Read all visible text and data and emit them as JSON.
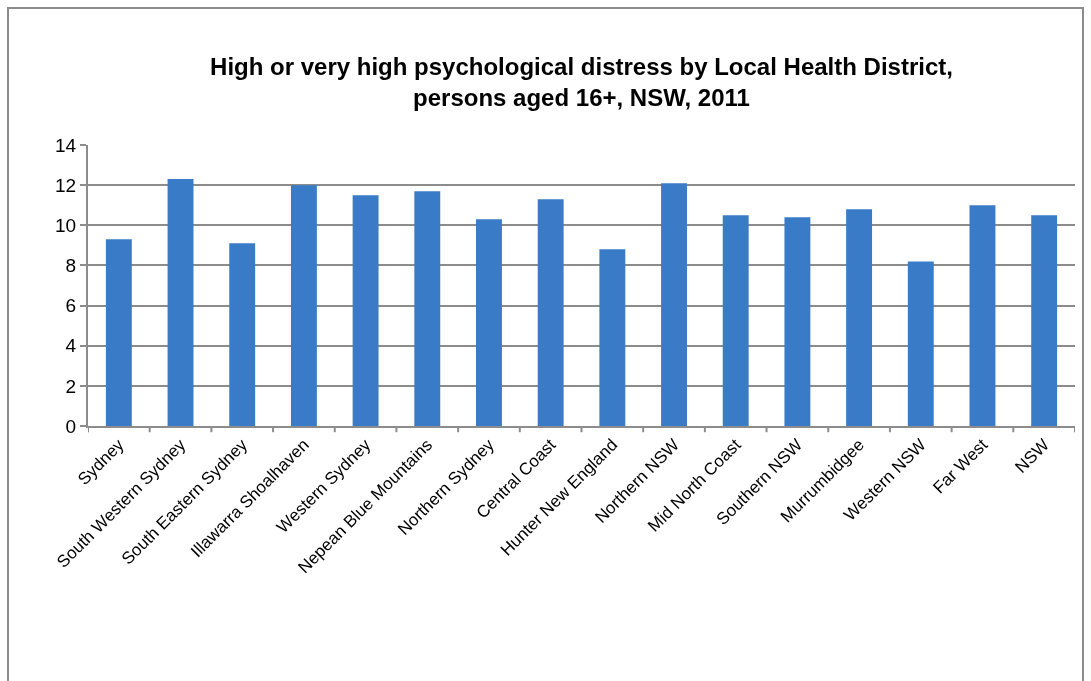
{
  "chart_data": {
    "type": "bar",
    "title": "High or very high psychological distress by Local Health District,\npersons aged 16+, NSW, 2011",
    "categories": [
      "Sydney",
      "South Western Sydney",
      "South Eastern Sydney",
      "Illawarra Shoalhaven",
      "Western Sydney",
      "Nepean Blue Mountains",
      "Northern Sydney",
      "Central Coast",
      "Hunter New England",
      "Northern NSW",
      "Mid North Coast",
      "Southern NSW",
      "Murrumbidgee",
      "Western NSW",
      "Far West",
      "NSW"
    ],
    "values": [
      9.3,
      12.3,
      9.1,
      12.0,
      11.5,
      11.7,
      10.3,
      11.3,
      8.8,
      12.1,
      10.5,
      10.4,
      10.8,
      8.2,
      11.0,
      10.5
    ],
    "color": "#3a7bc8",
    "ylim": [
      0,
      14
    ],
    "yticks": [
      0,
      2,
      4,
      6,
      8,
      10,
      12,
      14
    ],
    "grid": "y"
  }
}
